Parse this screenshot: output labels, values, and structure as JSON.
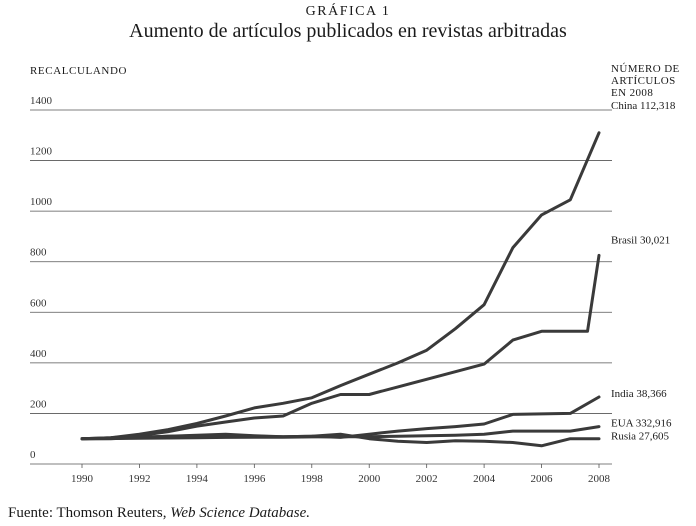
{
  "figure": {
    "label": "GRÁFICA 1",
    "title": "Aumento de artículos publicados en revistas arbitradas",
    "y_axis_title": "RECALCULANDO",
    "legend_title": [
      "NÚMERO DE",
      "ARTÍCULOS",
      "EN 2008"
    ],
    "source_prefix": "Fuente: Thomson Reuters, ",
    "source_italic": "Web Science Database."
  },
  "colors": {
    "line": "#3a3a3a",
    "grid": "#555555"
  },
  "chart_data": {
    "type": "line",
    "x": [
      1990,
      1991,
      1992,
      1993,
      1994,
      1995,
      1996,
      1997,
      1998,
      1999,
      2000,
      2001,
      2002,
      2003,
      2004,
      2005,
      2006,
      2007,
      2008
    ],
    "x_ticks": [
      1990,
      1992,
      1994,
      1996,
      1998,
      2000,
      2002,
      2004,
      2006,
      2008
    ],
    "y_ticks": [
      0,
      200,
      400,
      600,
      800,
      1000,
      1200,
      1400
    ],
    "ylim": [
      0,
      1400
    ],
    "xlim": [
      1990,
      2008
    ],
    "grid": true,
    "series": [
      {
        "name": "China",
        "label": "China 112,318",
        "x": [
          1990,
          1991,
          1992,
          1993,
          1994,
          1995,
          1996,
          1997,
          1998,
          1999,
          2000,
          2001,
          2002,
          2003,
          2004,
          2005,
          2006,
          2007,
          2008
        ],
        "values": [
          100,
          104,
          118,
          136,
          160,
          190,
          222,
          240,
          262,
          310,
          355,
          400,
          450,
          535,
          630,
          855,
          985,
          1045,
          1310
        ]
      },
      {
        "name": "Brasil",
        "label": "Brasil 30,021",
        "x": [
          1990,
          1991,
          1992,
          1993,
          1994,
          1995,
          1996,
          1997,
          1998,
          1999,
          2000,
          2001,
          2002,
          2003,
          2004,
          2005,
          2006,
          2007,
          2007.6,
          2008
        ],
        "values": [
          100,
          104,
          112,
          128,
          150,
          166,
          182,
          190,
          240,
          275,
          275,
          305,
          335,
          365,
          395,
          490,
          525,
          525,
          525,
          825
        ]
      },
      {
        "name": "India",
        "label": "India 38,366",
        "x": [
          1990,
          1991,
          1992,
          1993,
          1994,
          1995,
          1996,
          1997,
          1998,
          1999,
          2000,
          2001,
          2002,
          2003,
          2004,
          2005,
          2006,
          2007,
          2008
        ],
        "values": [
          100,
          102,
          106,
          110,
          114,
          118,
          112,
          108,
          110,
          105,
          118,
          130,
          140,
          148,
          158,
          196,
          198,
          200,
          265
        ]
      },
      {
        "name": "EUA",
        "label": "EUA 332,916",
        "x": [
          1990,
          1991,
          1992,
          1993,
          1994,
          1995,
          1996,
          1997,
          1998,
          1999,
          2000,
          2001,
          2002,
          2003,
          2004,
          2005,
          2006,
          2007,
          2008
        ],
        "values": [
          100,
          101,
          102,
          103,
          104,
          105,
          106,
          106,
          107,
          108,
          108,
          110,
          112,
          114,
          118,
          130,
          130,
          130,
          148
        ]
      },
      {
        "name": "Rusia",
        "label": "Rusia 27,605",
        "x": [
          1990,
          1991,
          1992,
          1993,
          1994,
          1995,
          1996,
          1997,
          1998,
          1999,
          2000,
          2001,
          2002,
          2003,
          2004,
          2005,
          2006,
          2007,
          2008
        ],
        "values": [
          100,
          100,
          105,
          110,
          112,
          115,
          110,
          108,
          110,
          118,
          100,
          90,
          85,
          92,
          90,
          85,
          72,
          100,
          100
        ]
      }
    ]
  }
}
